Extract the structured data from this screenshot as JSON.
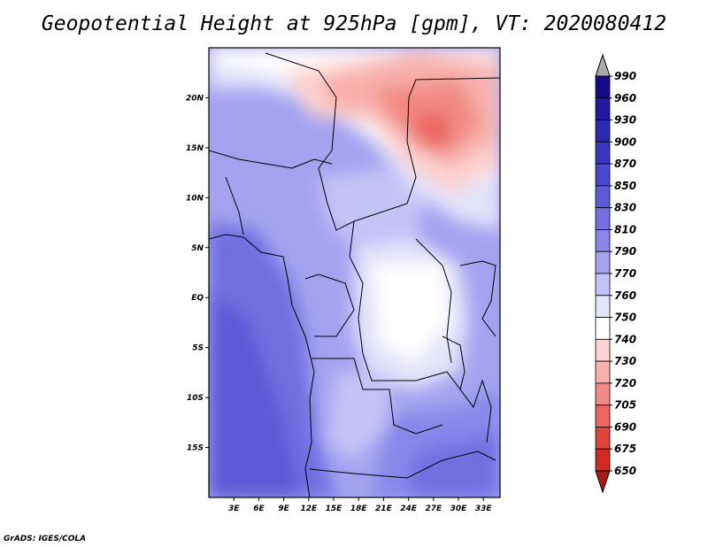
{
  "title": "Geopotential Height at 925hPa [gpm], VT: 2020080412",
  "lat_labels": [
    "20N",
    "15N",
    "10N",
    "5N",
    "EQ",
    "5S",
    "10S",
    "15S"
  ],
  "lat_values": [
    20,
    15,
    10,
    5,
    0,
    -5,
    -10,
    -15
  ],
  "lon_labels": [
    "3E",
    "6E",
    "9E",
    "12E",
    "15E",
    "18E",
    "21E",
    "24E",
    "27E",
    "30E",
    "33E"
  ],
  "lon_values": [
    3,
    6,
    9,
    12,
    15,
    18,
    21,
    24,
    27,
    30,
    33
  ],
  "map_extent": {
    "lon": [
      0,
      35
    ],
    "lat": [
      -20,
      25
    ]
  },
  "colorbar": {
    "levels": [
      "990",
      "960",
      "930",
      "900",
      "870",
      "850",
      "830",
      "810",
      "790",
      "770",
      "760",
      "750",
      "740",
      "730",
      "720",
      "705",
      "690",
      "675",
      "650"
    ],
    "colors": [
      "#150a8a",
      "#1f1a9f",
      "#2b28b2",
      "#3a36c4",
      "#4a48cf",
      "#5b5ad8",
      "#716fe1",
      "#8986ea",
      "#a5a3f0",
      "#c4c3f7",
      "#e3e3fb",
      "#ffffff",
      "#fcd3d0",
      "#f8b0ab",
      "#f28b85",
      "#eb6760",
      "#e1443d",
      "#cf2a23",
      "#b51d19"
    ],
    "over_color": "#aaaaaa",
    "under_color": "#aa1b16"
  },
  "credit": "GrADS: IGES/COLA"
}
